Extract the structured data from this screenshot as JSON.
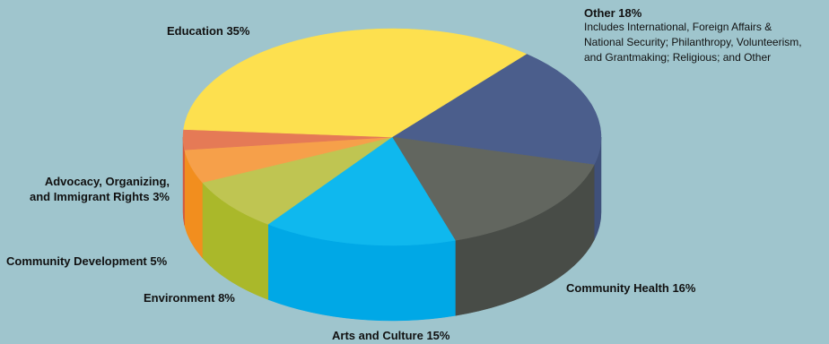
{
  "chart_data": {
    "type": "pie",
    "style": "3d",
    "slices": [
      {
        "name": "Other",
        "value": 18,
        "label": "Other 18%",
        "color": "#4b5e8c",
        "side": "#3f507a"
      },
      {
        "name": "Community Health",
        "value": 16,
        "label": "Community Health 16%",
        "color": "#62665f",
        "side": "#484c47"
      },
      {
        "name": "Arts and Culture",
        "value": 15,
        "label": "Arts and Culture 15%",
        "color": "#0fb8ee",
        "side": "#00a8e6"
      },
      {
        "name": "Environment",
        "value": 8,
        "label": "Environment 8%",
        "color": "#bfc552",
        "side": "#aab82a"
      },
      {
        "name": "Community Development",
        "value": 5,
        "label": "Community Development 5%",
        "color": "#f6a04a",
        "side": "#f28e1e"
      },
      {
        "name": "Advocacy, Organizing, and Immigrant Rights",
        "value": 3,
        "label_lines": [
          "Advocacy, Organizing,",
          "and Immigrant Rights 3%"
        ],
        "color": "#e57a56",
        "side": "#d45b3c"
      },
      {
        "name": "Education",
        "value": 35,
        "label": "Education 35%",
        "color": "#fde04f",
        "side": "#e6c22f"
      }
    ],
    "notes": {
      "Other": [
        "Includes International, Foreign Affairs &",
        "National Security; Philanthropy, Volunteerism,",
        "and Grantmaking; Religious; and Other"
      ]
    }
  }
}
